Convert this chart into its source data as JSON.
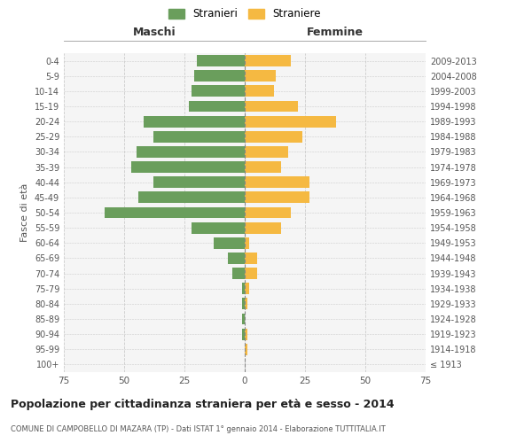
{
  "age_groups": [
    "100+",
    "95-99",
    "90-94",
    "85-89",
    "80-84",
    "75-79",
    "70-74",
    "65-69",
    "60-64",
    "55-59",
    "50-54",
    "45-49",
    "40-44",
    "35-39",
    "30-34",
    "25-29",
    "20-24",
    "15-19",
    "10-14",
    "5-9",
    "0-4"
  ],
  "birth_years": [
    "≤ 1913",
    "1914-1918",
    "1919-1923",
    "1924-1928",
    "1929-1933",
    "1934-1938",
    "1939-1943",
    "1944-1948",
    "1949-1953",
    "1954-1958",
    "1959-1963",
    "1964-1968",
    "1969-1973",
    "1974-1978",
    "1979-1983",
    "1984-1988",
    "1989-1993",
    "1994-1998",
    "1999-2003",
    "2004-2008",
    "2009-2013"
  ],
  "males": [
    0,
    0,
    1,
    1,
    1,
    1,
    5,
    7,
    13,
    22,
    58,
    44,
    38,
    47,
    45,
    38,
    42,
    23,
    22,
    21,
    20
  ],
  "females": [
    0,
    1,
    1,
    0,
    1,
    2,
    5,
    5,
    2,
    15,
    19,
    27,
    27,
    15,
    18,
    24,
    38,
    22,
    12,
    13,
    19
  ],
  "male_color": "#6a9e5c",
  "female_color": "#f5b942",
  "bg_color": "#ffffff",
  "grid_color": "#cccccc",
  "title": "Popolazione per cittadinanza straniera per età e sesso - 2014",
  "subtitle": "COMUNE DI CAMPOBELLO DI MAZARA (TP) - Dati ISTAT 1° gennaio 2014 - Elaborazione TUTTITALIA.IT",
  "ylabel_left": "Fasce di età",
  "maschi_label": "Maschi",
  "femmine_label": "Femmine",
  "legend_male": "Stranieri",
  "legend_female": "Straniere",
  "xlim": 75
}
